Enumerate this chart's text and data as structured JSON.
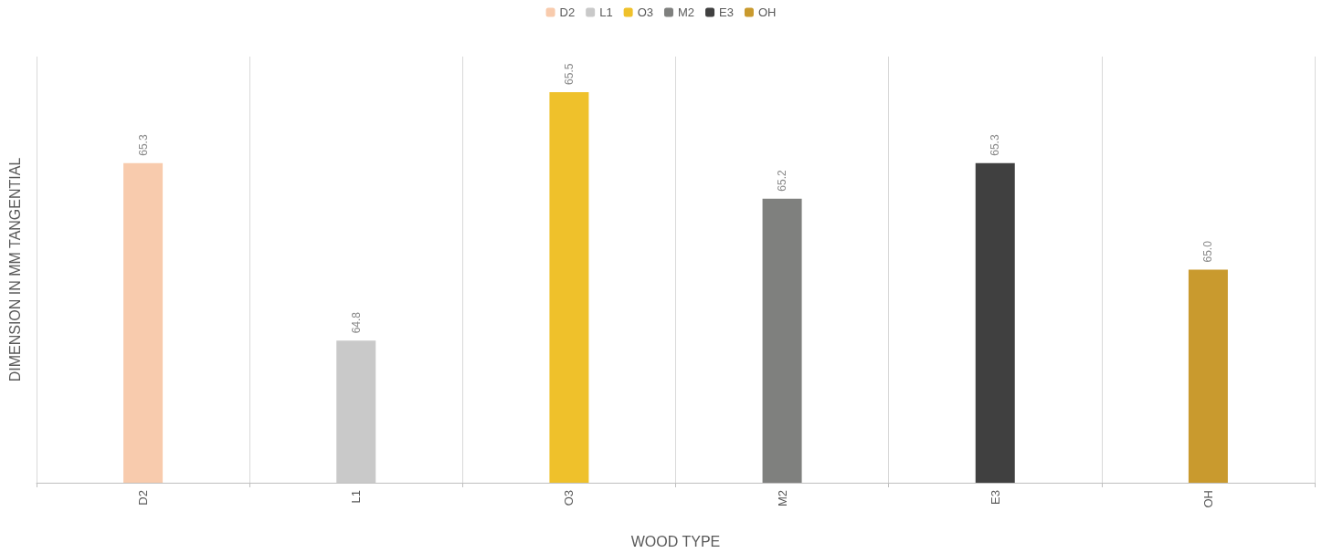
{
  "chart_data": {
    "type": "bar",
    "xlabel": "WOOD TYPE",
    "ylabel": "DIMENSION IN MM TANGENTIAL",
    "categories": [
      "D2",
      "L1",
      "O3",
      "M2",
      "E3",
      "OH"
    ],
    "series": [
      {
        "name": "D2",
        "color": "#f8cbad",
        "values": [
          65.3,
          null,
          null,
          null,
          null,
          null
        ],
        "value_labels": [
          "65.3",
          null,
          null,
          null,
          null,
          null
        ]
      },
      {
        "name": "L1",
        "color": "#c9c9c9",
        "values": [
          null,
          64.8,
          null,
          null,
          null,
          null
        ],
        "value_labels": [
          null,
          "64.8",
          null,
          null,
          null,
          null
        ]
      },
      {
        "name": "O3",
        "color": "#efc12b",
        "values": [
          null,
          null,
          65.5,
          null,
          null,
          null
        ],
        "value_labels": [
          null,
          null,
          "65.5",
          null,
          null,
          null
        ]
      },
      {
        "name": "M2",
        "color": "#7f807e",
        "values": [
          null,
          null,
          null,
          65.2,
          null,
          null
        ],
        "value_labels": [
          null,
          null,
          null,
          "65.2",
          null,
          null
        ]
      },
      {
        "name": "E3",
        "color": "#404040",
        "values": [
          null,
          null,
          null,
          null,
          65.3,
          null
        ],
        "value_labels": [
          null,
          null,
          null,
          null,
          "65.3",
          null
        ]
      },
      {
        "name": "OH",
        "color": "#c99a2e",
        "values": [
          null,
          null,
          null,
          null,
          null,
          65.0
        ],
        "value_labels": [
          null,
          null,
          null,
          null,
          null,
          "65.0"
        ]
      }
    ],
    "ylim": [
      64.4,
      65.6
    ],
    "tick_labels": "x",
    "grid": "x",
    "legend": "top"
  }
}
